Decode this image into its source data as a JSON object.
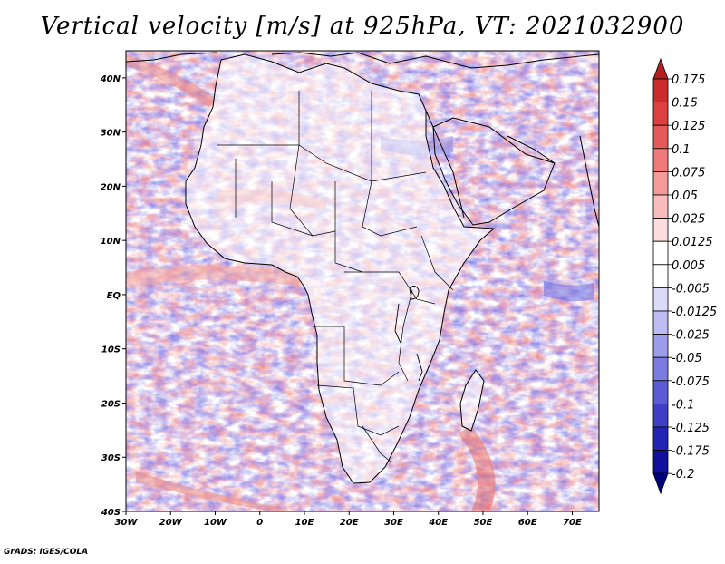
{
  "title": "Vertical velocity [m/s] at 925hPa, VT: 2021032900",
  "footer": "GrADS: IGES/COLA",
  "map": {
    "region": "Africa",
    "lon_range": [
      -30,
      76
    ],
    "lat_range": [
      -40,
      45
    ],
    "x_ticks": [
      "30W",
      "20W",
      "10W",
      "0",
      "10E",
      "20E",
      "30E",
      "40E",
      "50E",
      "60E",
      "70E"
    ],
    "y_ticks": [
      "40N",
      "30N",
      "20N",
      "10N",
      "EQ",
      "10S",
      "20S",
      "30S",
      "40S"
    ]
  },
  "colorbar": {
    "levels": [
      "0.175",
      "0.15",
      "0.125",
      "0.1",
      "0.075",
      "0.05",
      "0.025",
      "0.0125",
      "0.005",
      "-0.005",
      "-0.0125",
      "-0.025",
      "-0.05",
      "-0.075",
      "-0.1",
      "-0.125",
      "-0.175",
      "-0.2"
    ],
    "colors": [
      "#b41e1e",
      "#cc2b2b",
      "#dd4040",
      "#e65a5a",
      "#ef7a7a",
      "#f59a9a",
      "#f9bcbc",
      "#fcdcdc",
      "#ffffff",
      "#ffffff",
      "#dcdcf8",
      "#bcbcf2",
      "#9c9cea",
      "#7c7ce0",
      "#5c5cd4",
      "#3e3ec6",
      "#2424b4",
      "#10109c",
      "#00007a"
    ]
  },
  "colors": {
    "positive": "#e0605a",
    "negative": "#6a6ae0",
    "coast": "#000000"
  }
}
